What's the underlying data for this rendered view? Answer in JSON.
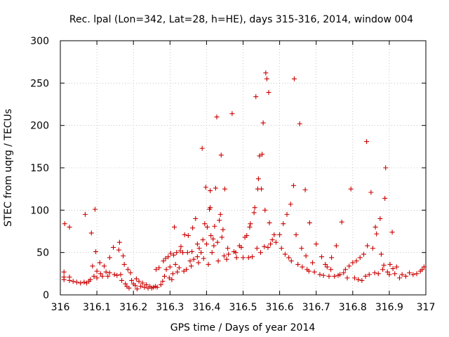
{
  "chart_data": {
    "type": "scatter",
    "title": "Rec. lpal (Lon=342, Lat=28, h=HE), days 315-316, 2014, window 004",
    "xlabel": "GPS time / Days of year 2014",
    "ylabel": "STEC from uqrg / TECUs",
    "xlim": [
      316,
      317
    ],
    "ylim": [
      0,
      300
    ],
    "xticks": [
      "316",
      "316.1",
      "316.2",
      "316.3",
      "316.4",
      "316.5",
      "316.6",
      "316.7",
      "316.8",
      "316.9",
      "317"
    ],
    "xtick_values": [
      316,
      316.1,
      316.2,
      316.3,
      316.4,
      316.5,
      316.6,
      316.7,
      316.8,
      316.9,
      317
    ],
    "yticks": [
      "0",
      "50",
      "100",
      "150",
      "200",
      "250",
      "300"
    ],
    "ytick_values": [
      0,
      50,
      100,
      150,
      200,
      250,
      300
    ],
    "grid": true,
    "marker": "plus",
    "color": "#cc0000",
    "series": [
      {
        "points": [
          [
            316.01,
            27
          ],
          [
            316.01,
            21
          ],
          [
            316.01,
            18
          ],
          [
            316.012,
            84
          ],
          [
            316.025,
            80
          ],
          [
            316.025,
            21
          ],
          [
            316.025,
            17
          ],
          [
            316.035,
            16
          ],
          [
            316.045,
            15
          ],
          [
            316.055,
            14
          ],
          [
            316.065,
            15
          ],
          [
            316.068,
            95
          ],
          [
            316.072,
            14
          ],
          [
            316.078,
            16
          ],
          [
            316.082,
            18
          ],
          [
            316.085,
            73
          ],
          [
            316.088,
            34
          ],
          [
            316.092,
            22
          ],
          [
            316.095,
            101
          ],
          [
            316.097,
            51
          ],
          [
            316.1,
            28
          ],
          [
            316.1,
            20
          ],
          [
            316.108,
            38
          ],
          [
            316.11,
            25
          ],
          [
            316.115,
            22
          ],
          [
            316.12,
            34
          ],
          [
            316.125,
            27
          ],
          [
            316.13,
            22
          ],
          [
            316.135,
            26
          ],
          [
            316.135,
            44
          ],
          [
            316.145,
            56
          ],
          [
            316.148,
            24
          ],
          [
            316.155,
            23
          ],
          [
            316.16,
            53
          ],
          [
            316.162,
            62
          ],
          [
            316.165,
            24
          ],
          [
            316.168,
            17
          ],
          [
            316.172,
            46
          ],
          [
            316.175,
            36
          ],
          [
            316.178,
            13
          ],
          [
            316.182,
            10
          ],
          [
            316.185,
            30
          ],
          [
            316.188,
            8
          ],
          [
            316.192,
            26
          ],
          [
            316.195,
            17
          ],
          [
            316.2,
            13
          ],
          [
            316.205,
            11
          ],
          [
            316.208,
            19
          ],
          [
            316.21,
            7
          ],
          [
            316.215,
            16
          ],
          [
            316.22,
            10
          ],
          [
            316.225,
            14
          ],
          [
            316.23,
            9
          ],
          [
            316.235,
            12
          ],
          [
            316.24,
            8
          ],
          [
            316.245,
            10
          ],
          [
            316.25,
            8
          ],
          [
            316.255,
            9
          ],
          [
            316.26,
            10
          ],
          [
            316.262,
            30
          ],
          [
            316.265,
            9
          ],
          [
            316.27,
            32
          ],
          [
            316.275,
            12
          ],
          [
            316.28,
            16
          ],
          [
            316.282,
            40
          ],
          [
            316.285,
            22
          ],
          [
            316.288,
            43
          ],
          [
            316.29,
            30
          ],
          [
            316.295,
            45
          ],
          [
            316.298,
            20
          ],
          [
            316.3,
            33
          ],
          [
            316.302,
            49
          ],
          [
            316.305,
            18
          ],
          [
            316.308,
            25
          ],
          [
            316.31,
            47
          ],
          [
            316.312,
            80
          ],
          [
            316.315,
            36
          ],
          [
            316.318,
            50
          ],
          [
            316.32,
            27
          ],
          [
            316.325,
            32
          ],
          [
            316.328,
            52
          ],
          [
            316.33,
            57
          ],
          [
            316.335,
            50
          ],
          [
            316.338,
            28
          ],
          [
            316.34,
            71
          ],
          [
            316.345,
            30
          ],
          [
            316.348,
            50
          ],
          [
            316.35,
            70
          ],
          [
            316.355,
            40
          ],
          [
            316.358,
            34
          ],
          [
            316.36,
            51
          ],
          [
            316.362,
            79
          ],
          [
            316.365,
            42
          ],
          [
            316.37,
            90
          ],
          [
            316.375,
            45
          ],
          [
            316.375,
            60
          ],
          [
            316.378,
            38
          ],
          [
            316.38,
            55
          ],
          [
            316.385,
            50
          ],
          [
            316.388,
            173
          ],
          [
            316.39,
            65
          ],
          [
            316.392,
            43
          ],
          [
            316.395,
            84
          ],
          [
            316.398,
            127
          ],
          [
            316.4,
            60
          ],
          [
            316.402,
            80
          ],
          [
            316.405,
            36
          ],
          [
            316.408,
            101
          ],
          [
            316.41,
            123
          ],
          [
            316.41,
            103
          ],
          [
            316.412,
            70
          ],
          [
            316.415,
            50
          ],
          [
            316.418,
            66
          ],
          [
            316.42,
            58
          ],
          [
            316.422,
            81
          ],
          [
            316.425,
            126
          ],
          [
            316.428,
            210
          ],
          [
            316.43,
            62
          ],
          [
            316.432,
            40
          ],
          [
            316.435,
            88
          ],
          [
            316.438,
            95
          ],
          [
            316.44,
            165
          ],
          [
            316.442,
            68
          ],
          [
            316.445,
            77
          ],
          [
            316.448,
            46
          ],
          [
            316.45,
            125
          ],
          [
            316.455,
            42
          ],
          [
            316.458,
            55
          ],
          [
            316.46,
            48
          ],
          [
            316.47,
            214
          ],
          [
            316.475,
            51
          ],
          [
            316.48,
            50
          ],
          [
            316.482,
            44
          ],
          [
            316.49,
            58
          ],
          [
            316.495,
            56
          ],
          [
            316.5,
            44
          ],
          [
            316.505,
            68
          ],
          [
            316.51,
            70
          ],
          [
            316.515,
            44
          ],
          [
            316.518,
            80
          ],
          [
            316.52,
            84
          ],
          [
            316.525,
            45
          ],
          [
            316.53,
            97
          ],
          [
            316.532,
            103
          ],
          [
            316.535,
            234
          ],
          [
            316.538,
            55
          ],
          [
            316.54,
            125
          ],
          [
            316.542,
            137
          ],
          [
            316.545,
            164
          ],
          [
            316.548,
            50
          ],
          [
            316.55,
            125
          ],
          [
            316.552,
            166
          ],
          [
            316.555,
            203
          ],
          [
            316.558,
            57
          ],
          [
            316.56,
            100
          ],
          [
            316.562,
            262
          ],
          [
            316.565,
            255
          ],
          [
            316.568,
            56
          ],
          [
            316.57,
            239
          ],
          [
            316.572,
            85
          ],
          [
            316.575,
            60
          ],
          [
            316.58,
            65
          ],
          [
            316.585,
            71
          ],
          [
            316.59,
            62
          ],
          [
            316.6,
            71
          ],
          [
            316.605,
            55
          ],
          [
            316.61,
            84
          ],
          [
            316.615,
            48
          ],
          [
            316.62,
            95
          ],
          [
            316.625,
            44
          ],
          [
            316.63,
            107
          ],
          [
            316.632,
            40
          ],
          [
            316.638,
            129
          ],
          [
            316.64,
            255
          ],
          [
            316.645,
            71
          ],
          [
            316.65,
            36
          ],
          [
            316.655,
            202
          ],
          [
            316.66,
            55
          ],
          [
            316.662,
            33
          ],
          [
            316.67,
            124
          ],
          [
            316.672,
            46
          ],
          [
            316.675,
            30
          ],
          [
            316.68,
            28
          ],
          [
            316.682,
            85
          ],
          [
            316.69,
            38
          ],
          [
            316.695,
            27
          ],
          [
            316.7,
            60
          ],
          [
            316.71,
            24
          ],
          [
            316.715,
            45
          ],
          [
            316.72,
            23
          ],
          [
            316.725,
            36
          ],
          [
            316.73,
            33
          ],
          [
            316.735,
            22
          ],
          [
            316.74,
            30
          ],
          [
            316.742,
            44
          ],
          [
            316.75,
            22
          ],
          [
            316.755,
            58
          ],
          [
            316.76,
            23
          ],
          [
            316.765,
            24
          ],
          [
            316.77,
            86
          ],
          [
            316.775,
            26
          ],
          [
            316.78,
            30
          ],
          [
            316.785,
            20
          ],
          [
            316.79,
            34
          ],
          [
            316.795,
            125
          ],
          [
            316.8,
            38
          ],
          [
            316.805,
            20
          ],
          [
            316.81,
            40
          ],
          [
            316.815,
            18
          ],
          [
            316.82,
            44
          ],
          [
            316.825,
            17
          ],
          [
            316.83,
            48
          ],
          [
            316.835,
            22
          ],
          [
            316.838,
            181
          ],
          [
            316.84,
            58
          ],
          [
            316.845,
            24
          ],
          [
            316.85,
            121
          ],
          [
            316.855,
            55
          ],
          [
            316.86,
            26
          ],
          [
            316.862,
            80
          ],
          [
            316.865,
            72
          ],
          [
            316.87,
            25
          ],
          [
            316.875,
            90
          ],
          [
            316.878,
            48
          ],
          [
            316.882,
            30
          ],
          [
            316.885,
            35
          ],
          [
            316.888,
            114
          ],
          [
            316.89,
            150
          ],
          [
            316.895,
            27
          ],
          [
            316.9,
            24
          ],
          [
            316.902,
            36
          ],
          [
            316.908,
            74
          ],
          [
            316.91,
            31
          ],
          [
            316.915,
            25
          ],
          [
            316.92,
            33
          ],
          [
            316.928,
            20
          ],
          [
            316.935,
            24
          ],
          [
            316.945,
            22
          ],
          [
            316.955,
            26
          ],
          [
            316.965,
            24
          ],
          [
            316.975,
            25
          ],
          [
            316.985,
            28
          ],
          [
            316.99,
            30
          ],
          [
            316.995,
            33
          ]
        ]
      }
    ]
  }
}
